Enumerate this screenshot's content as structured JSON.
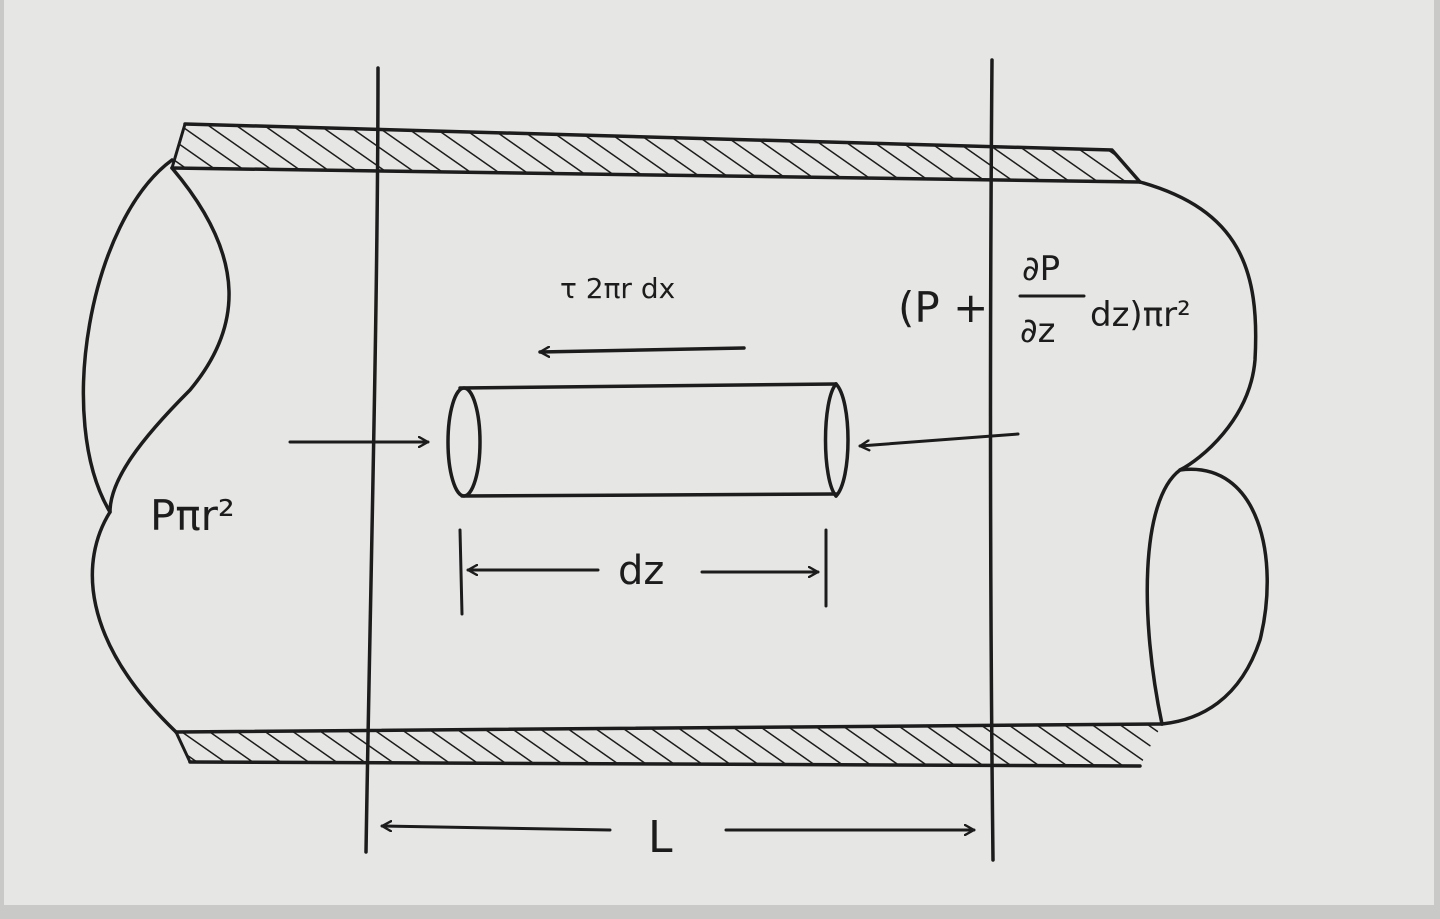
{
  "labels": {
    "shear_force": "τ 2πr dx",
    "left_pressure_force": "Pπr²",
    "right_pressure_open": "(P +",
    "dp_numerator": "∂P",
    "dp_denominator": "∂z",
    "right_pressure_close": "dz)πr²",
    "element_length": "dz",
    "section_length": "L"
  },
  "colors": {
    "paper": "#e6e6e4",
    "ink": "#1c1c1c",
    "background": "#c9c9c7"
  }
}
